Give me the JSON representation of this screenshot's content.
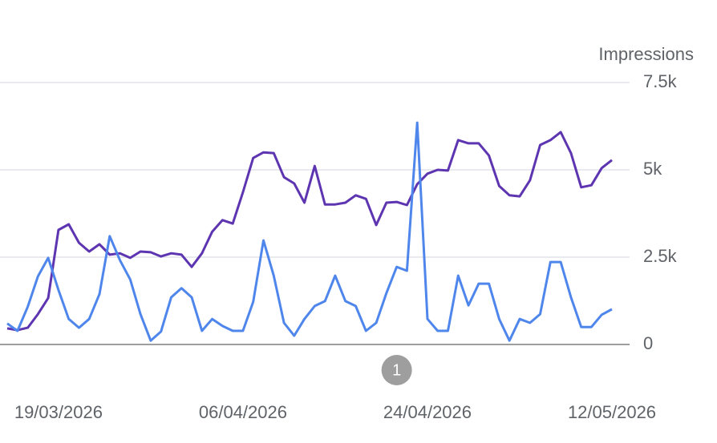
{
  "chart_data": {
    "type": "line",
    "y_axis_label": "Impressions",
    "x": [
      "14/03/2026",
      "15/03/2026",
      "16/03/2026",
      "17/03/2026",
      "18/03/2026",
      "19/03/2026",
      "20/03/2026",
      "21/03/2026",
      "22/03/2026",
      "23/03/2026",
      "24/03/2026",
      "25/03/2026",
      "26/03/2026",
      "27/03/2026",
      "28/03/2026",
      "29/03/2026",
      "30/03/2026",
      "31/03/2026",
      "01/04/2026",
      "02/04/2026",
      "03/04/2026",
      "04/04/2026",
      "05/04/2026",
      "06/04/2026",
      "07/04/2026",
      "08/04/2026",
      "09/04/2026",
      "10/04/2026",
      "11/04/2026",
      "12/04/2026",
      "13/04/2026",
      "14/04/2026",
      "15/04/2026",
      "16/04/2026",
      "17/04/2026",
      "18/04/2026",
      "19/04/2026",
      "20/04/2026",
      "21/04/2026",
      "22/04/2026",
      "23/04/2026",
      "24/04/2026",
      "25/04/2026",
      "26/04/2026",
      "27/04/2026",
      "28/04/2026",
      "29/04/2026",
      "30/04/2026",
      "01/05/2026",
      "02/05/2026",
      "03/05/2026",
      "04/05/2026",
      "05/05/2026",
      "06/05/2026",
      "07/05/2026",
      "08/05/2026",
      "09/05/2026",
      "10/05/2026",
      "11/05/2026",
      "12/05/2026"
    ],
    "series": [
      {
        "color": "#5e35b1",
        "values": [
          460,
          410,
          480,
          870,
          1330,
          3280,
          3440,
          2910,
          2660,
          2870,
          2570,
          2610,
          2480,
          2660,
          2640,
          2520,
          2610,
          2570,
          2220,
          2610,
          3230,
          3560,
          3460,
          4360,
          5340,
          5500,
          5480,
          4790,
          4610,
          4060,
          5110,
          4010,
          4010,
          4060,
          4270,
          4170,
          3420,
          4060,
          4080,
          3990,
          4590,
          4890,
          5000,
          4980,
          5850,
          5760,
          5760,
          5410,
          4540,
          4270,
          4240,
          4700,
          5710,
          5850,
          6080,
          5480,
          4500,
          4560,
          5050,
          5280
        ]
      },
      {
        "color": "#4f86ec",
        "values": [
          600,
          390,
          1080,
          1950,
          2480,
          1560,
          730,
          480,
          730,
          1440,
          3100,
          2410,
          1860,
          870,
          110,
          370,
          1350,
          1610,
          1350,
          390,
          730,
          530,
          390,
          390,
          1220,
          2980,
          1970,
          620,
          250,
          730,
          1100,
          1240,
          1970,
          1240,
          1100,
          390,
          620,
          1470,
          2220,
          2110,
          6350,
          730,
          390,
          390,
          1970,
          1120,
          1740,
          1740,
          730,
          110,
          730,
          620,
          870,
          2360,
          2360,
          1350,
          500,
          500,
          850,
          1010
        ]
      }
    ],
    "xlim": [
      "14/03/2026",
      "12/05/2026"
    ],
    "xticks": [
      "19/03/2026",
      "06/04/2026",
      "24/04/2026",
      "12/05/2026"
    ],
    "ylim": [
      0,
      7500
    ],
    "yticks": [
      0,
      {
        "value": 2500,
        "label": "2.5k"
      },
      {
        "value": 5000,
        "label": "5k"
      },
      {
        "value": 7500,
        "label": "7.5k"
      }
    ],
    "grid": true,
    "annotations": [
      {
        "x": "21/04/2026",
        "label": "1"
      }
    ]
  }
}
